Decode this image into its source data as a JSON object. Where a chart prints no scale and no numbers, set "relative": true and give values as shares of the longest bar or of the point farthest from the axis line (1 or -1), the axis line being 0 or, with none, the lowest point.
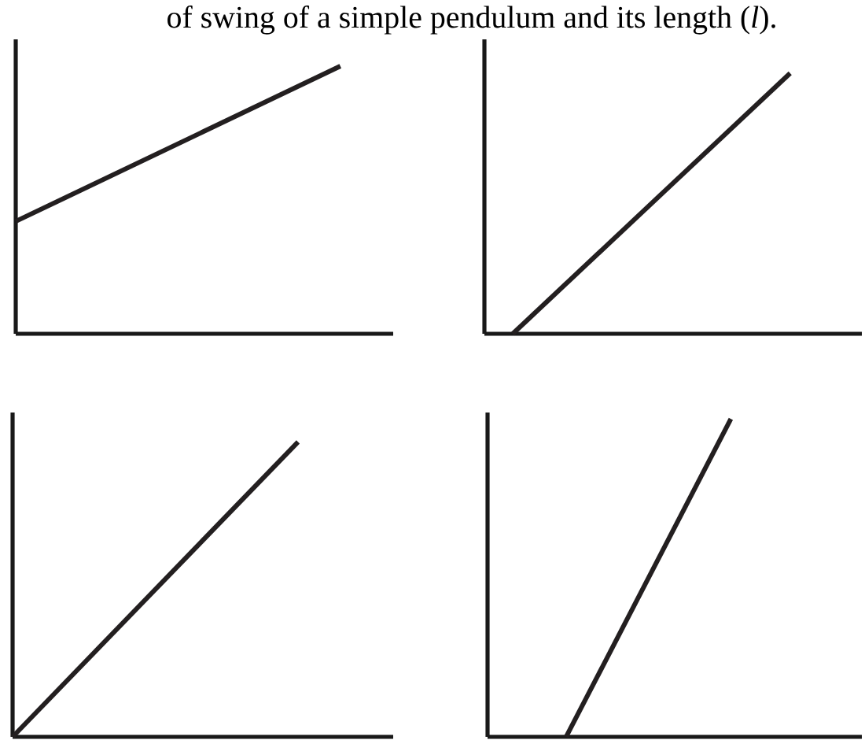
{
  "chart_data": [
    {
      "type": "line",
      "title": "of swing of a simple pendulum and its length (*l*).",
      "relative": true,
      "categories": [
        null,
        null
      ],
      "series": [
        {
          "color": "#231f20",
          "values": [
            0.42,
            1
          ]
        }
      ]
    },
    {
      "type": "line",
      "relative": true,
      "categories": [
        null,
        null
      ],
      "series": [
        {
          "color": "#231f20",
          "values": [
            0,
            1
          ]
        }
      ]
    },
    {
      "type": "line",
      "relative": true,
      "categories": [
        null,
        null
      ],
      "series": [
        {
          "color": "#231f20",
          "values": [
            0,
            1
          ]
        }
      ]
    },
    {
      "type": "line",
      "relative": true,
      "categories": [
        null,
        null
      ],
      "series": [
        {
          "color": "#231f20",
          "values": [
            0,
            1
          ]
        }
      ]
    }
  ]
}
